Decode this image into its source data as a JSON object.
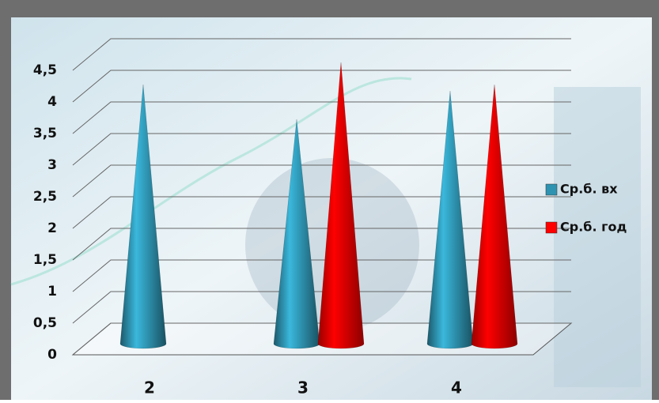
{
  "chart_data": {
    "type": "cone3d",
    "categories": [
      "2",
      "3",
      "4"
    ],
    "series": [
      {
        "name": "Ср.б. вх",
        "color": "#2e93b0",
        "values": [
          4.1,
          3.55,
          4.0
        ]
      },
      {
        "name": "Ср.б. год",
        "color": "#ff0000",
        "values": [
          null,
          4.45,
          4.1
        ]
      }
    ],
    "ylim": [
      0,
      4.5
    ],
    "yticks": [
      0,
      {
        "value": 0.5,
        "label": "0,5"
      },
      1,
      {
        "value": 1.5,
        "label": "1,5"
      },
      2,
      {
        "value": 2.5,
        "label": "2,5"
      },
      3,
      {
        "value": 3.5,
        "label": "3,5"
      },
      4,
      {
        "value": 4.5,
        "label": "4,5"
      }
    ],
    "grid": true,
    "legend": "right"
  }
}
